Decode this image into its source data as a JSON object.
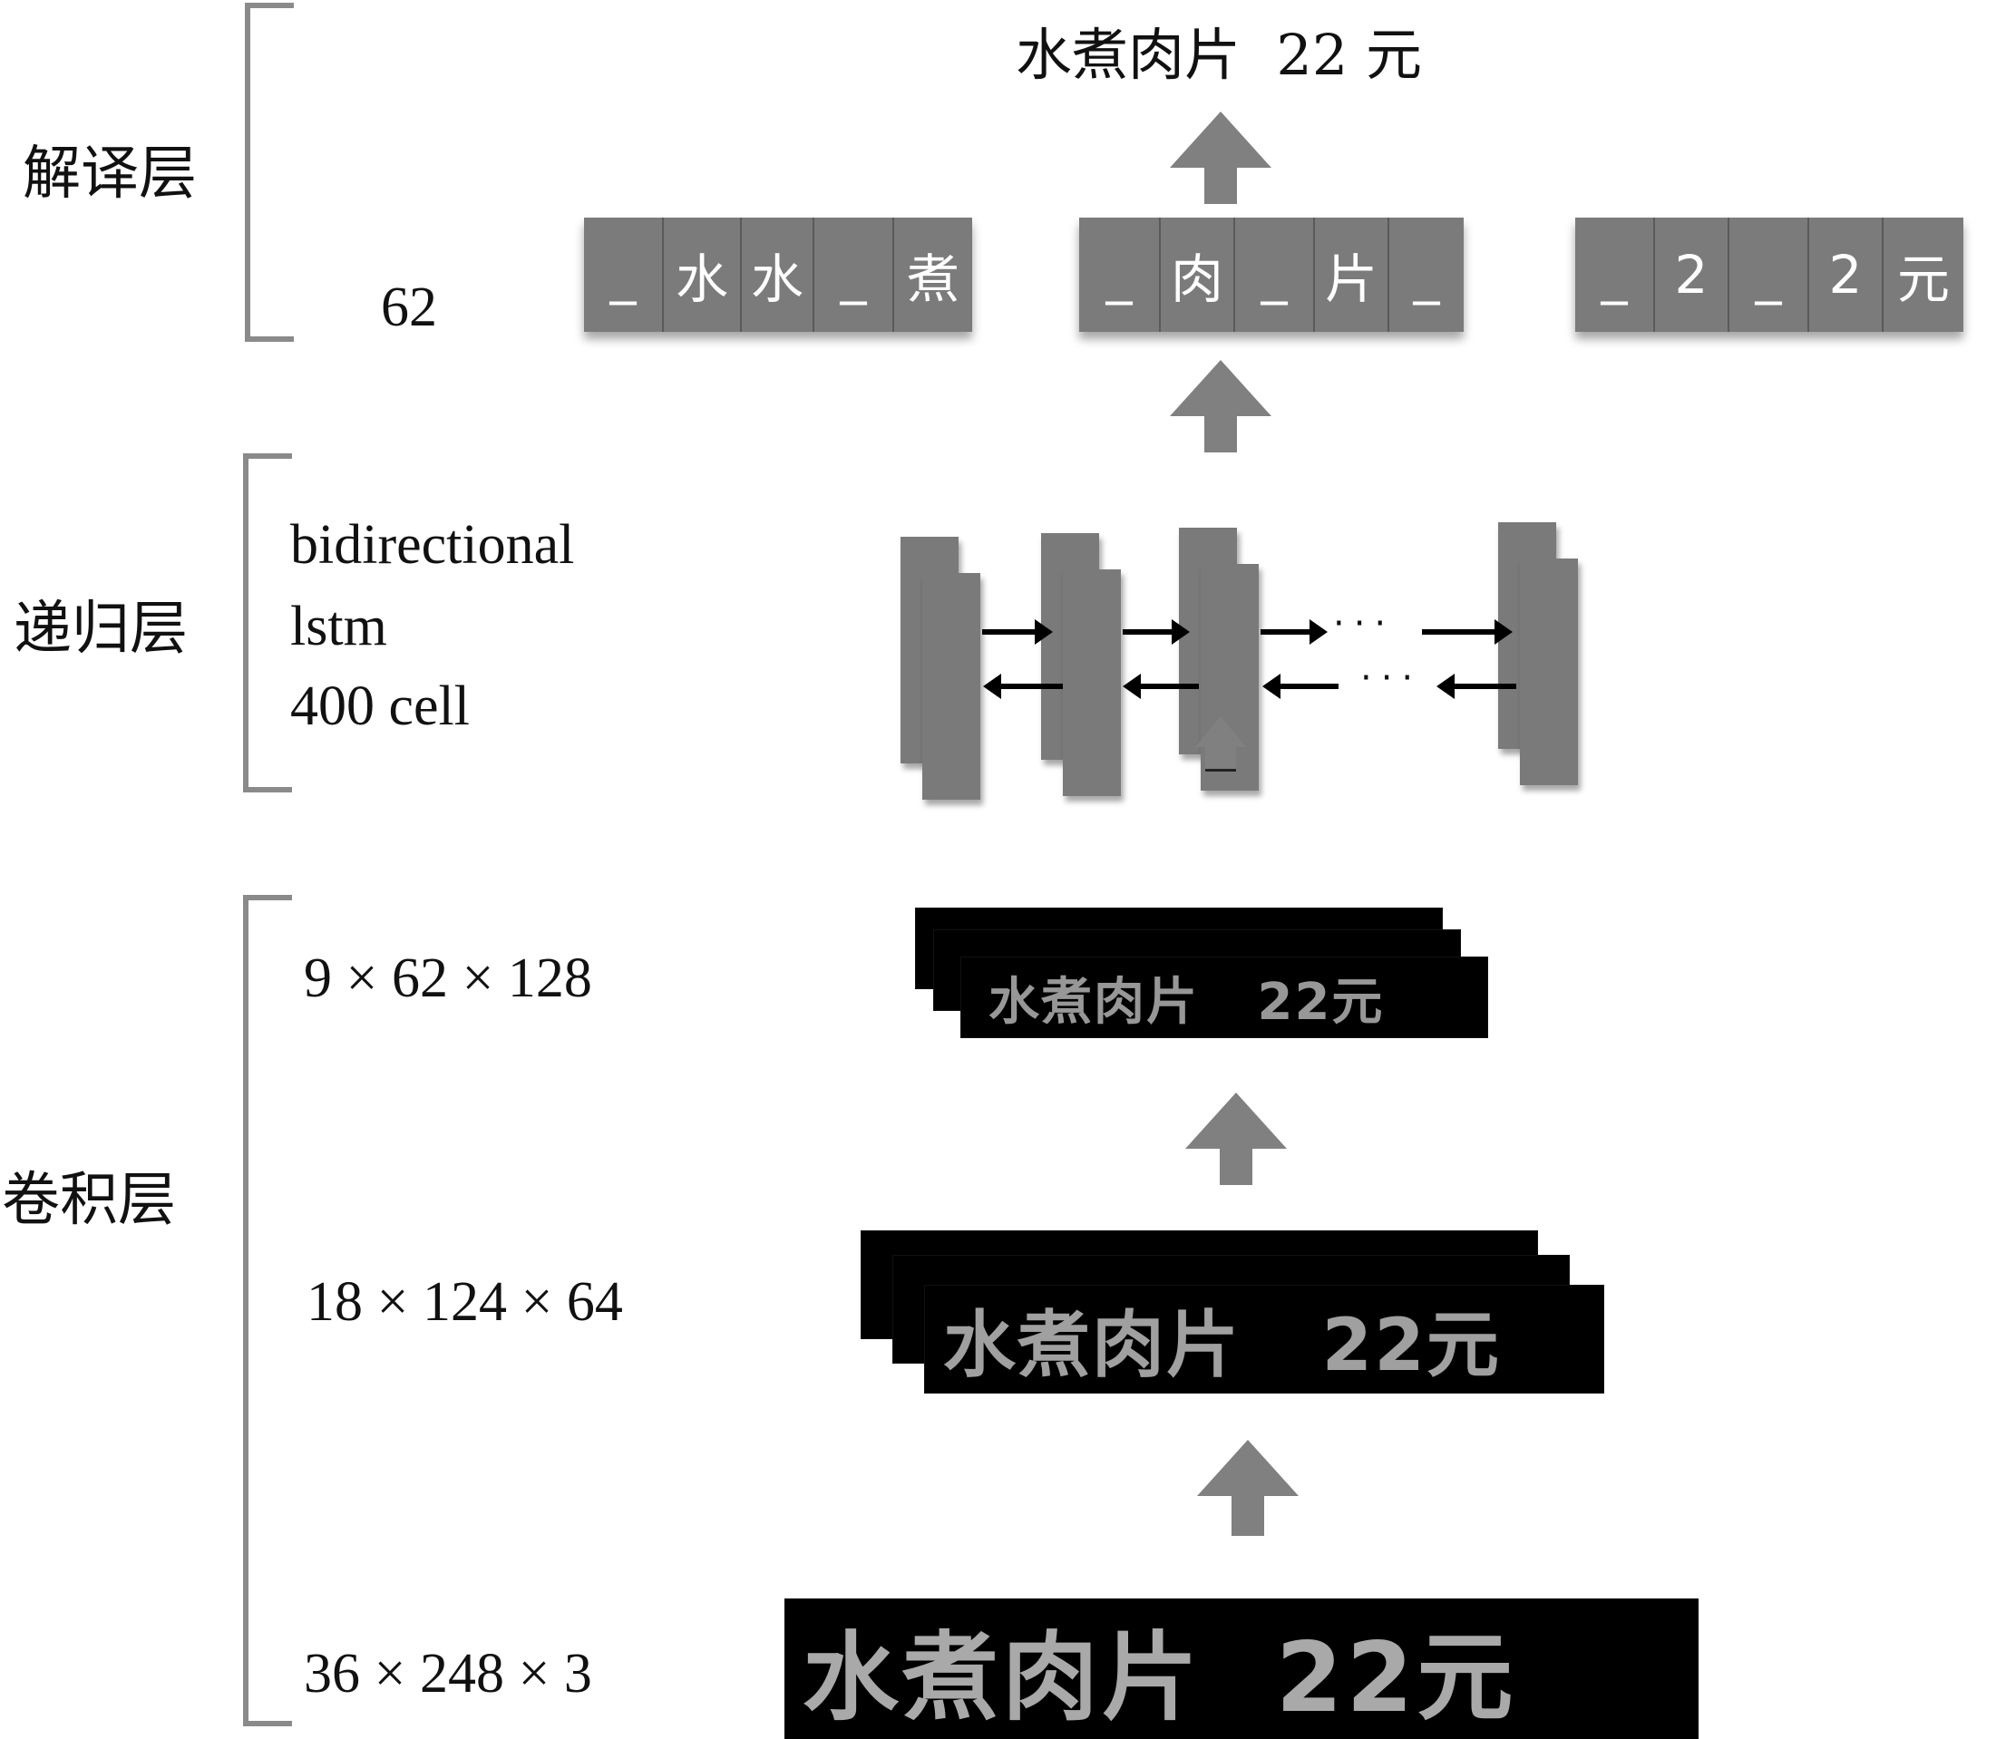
{
  "output_title": "水煮肉片  22 元",
  "layers": {
    "decode": {
      "label": "解译层",
      "spec": "62"
    },
    "recurrent": {
      "label": "递归层",
      "spec_lines": [
        "bidirectional",
        "lstm",
        "400 cell"
      ]
    },
    "conv": {
      "label": "卷积层",
      "specs": [
        "9 × 62 × 128",
        "18 × 124 × 64",
        "36 × 248 × 3"
      ]
    }
  },
  "decode_groups": [
    [
      "_",
      "水",
      "水",
      "_",
      "煮"
    ],
    [
      "_",
      "肉",
      "_",
      "片",
      "_"
    ],
    [
      "_",
      "2",
      "_",
      "2",
      "元"
    ]
  ],
  "ellipsis": "···",
  "feature_map_text": "水煮肉片   22元",
  "input_text": "水煮肉片  22元",
  "colors": {
    "block": "#7b7b7b",
    "arrow": "#808080",
    "bracket": "#8a8a8a"
  }
}
